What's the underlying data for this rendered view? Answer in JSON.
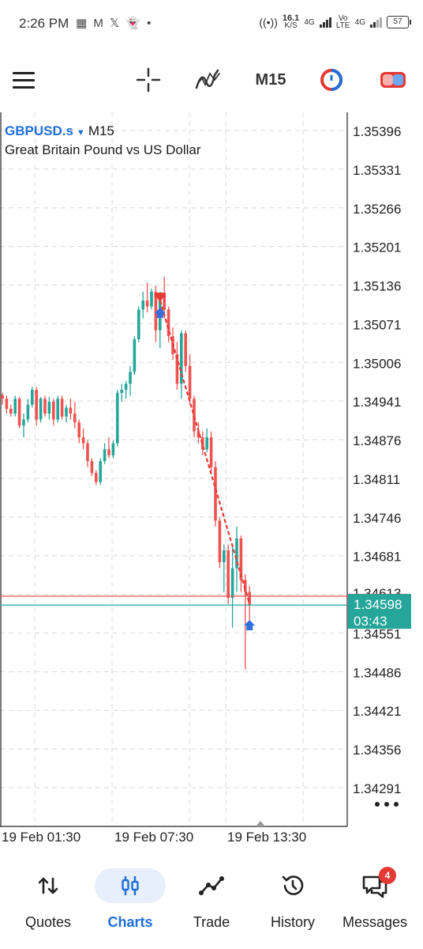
{
  "status_bar": {
    "time": "2:26 PM",
    "left_icons": [
      "network-speed-icon",
      "gmail-icon",
      "x-icon",
      "snapchat-icon",
      "dot-icon"
    ],
    "net_speed_value": "16.1",
    "net_speed_unit": "K/S",
    "network_1": "4G",
    "volte": "Vo LTE",
    "network_2": "4G",
    "battery": "57"
  },
  "toolbar": {
    "timeframe": "M15",
    "icons": [
      "menu-icon",
      "crosshair-icon",
      "indicator-icon",
      "chart-type-icon",
      "trade-toggle-icon"
    ]
  },
  "chart": {
    "symbol": "GBPUSD.s",
    "timeframe": "M15",
    "description": "Great Britain Pound vs US Dollar",
    "current_bid": "1.34598",
    "countdown": "03:43",
    "ask_label_partial": "1.34613",
    "colors": {
      "bull": "#26a69a",
      "bear": "#ef5350",
      "bid_line": "#26a69a",
      "ask_line": "#ef5350",
      "trade_line": "#e53935"
    }
  },
  "chart_data": {
    "type": "candlestick",
    "y_ticks": [
      "1.35396",
      "1.35331",
      "1.35266",
      "1.35201",
      "1.35136",
      "1.35071",
      "1.35006",
      "1.34941",
      "1.34876",
      "1.34811",
      "1.34746",
      "1.34681",
      "1.34551",
      "1.34486",
      "1.34421",
      "1.34356",
      "1.34291"
    ],
    "ylim": [
      1.34248,
      1.35426
    ],
    "x_ticks": [
      "19 Feb 01:30",
      "19 Feb 07:30",
      "19 Feb 13:30"
    ],
    "candles": [
      [
        1.34951,
        1.34955,
        1.34935,
        1.34945
      ],
      [
        1.34945,
        1.3495,
        1.3492,
        1.34928
      ],
      [
        1.34928,
        1.34935,
        1.34915,
        1.3492
      ],
      [
        1.3492,
        1.3495,
        1.34915,
        1.34945
      ],
      [
        1.34945,
        1.34948,
        1.34895,
        1.349
      ],
      [
        1.349,
        1.3492,
        1.3488,
        1.3491
      ],
      [
        1.3491,
        1.34945,
        1.34905,
        1.34935
      ],
      [
        1.34935,
        1.34965,
        1.3493,
        1.3496
      ],
      [
        1.3496,
        1.34965,
        1.349,
        1.3491
      ],
      [
        1.3491,
        1.34948,
        1.34905,
        1.34945
      ],
      [
        1.34945,
        1.3495,
        1.34915,
        1.3492
      ],
      [
        1.3492,
        1.34948,
        1.3491,
        1.3494
      ],
      [
        1.3494,
        1.34945,
        1.349,
        1.3491
      ],
      [
        1.3491,
        1.3495,
        1.34905,
        1.34945
      ],
      [
        1.34945,
        1.3495,
        1.3491,
        1.34915
      ],
      [
        1.34915,
        1.34935,
        1.34905,
        1.3493
      ],
      [
        1.3493,
        1.34945,
        1.3491,
        1.3492
      ],
      [
        1.3492,
        1.3494,
        1.34895,
        1.34905
      ],
      [
        1.34905,
        1.3491,
        1.3487,
        1.3488
      ],
      [
        1.3488,
        1.34895,
        1.3486,
        1.3487
      ],
      [
        1.3487,
        1.34875,
        1.3483,
        1.3484
      ],
      [
        1.3484,
        1.34845,
        1.34815,
        1.3482
      ],
      [
        1.3482,
        1.34825,
        1.348,
        1.34805
      ],
      [
        1.34805,
        1.34845,
        1.348,
        1.3484
      ],
      [
        1.3484,
        1.3487,
        1.34835,
        1.3486
      ],
      [
        1.3486,
        1.3488,
        1.34845,
        1.3485
      ],
      [
        1.3485,
        1.34875,
        1.34845,
        1.3487
      ],
      [
        1.3487,
        1.3496,
        1.34865,
        1.34955
      ],
      [
        1.34955,
        1.3497,
        1.3494,
        1.3496
      ],
      [
        1.3496,
        1.34975,
        1.34945,
        1.3497
      ],
      [
        1.3497,
        1.35,
        1.3495,
        1.3499
      ],
      [
        1.3499,
        1.3505,
        1.34985,
        1.35045
      ],
      [
        1.35045,
        1.351,
        1.3504,
        1.35095
      ],
      [
        1.35095,
        1.35125,
        1.3508,
        1.3511
      ],
      [
        1.3511,
        1.3514,
        1.3509,
        1.351
      ],
      [
        1.351,
        1.3513,
        1.35095,
        1.35125
      ],
      [
        1.35125,
        1.35135,
        1.3504,
        1.3506
      ],
      [
        1.3506,
        1.35125,
        1.3503,
        1.3512
      ],
      [
        1.3512,
        1.3515,
        1.3508,
        1.35095
      ],
      [
        1.35095,
        1.351,
        1.3504,
        1.3505
      ],
      [
        1.3505,
        1.35065,
        1.3501,
        1.3502
      ],
      [
        1.3502,
        1.3504,
        1.3496,
        1.3497
      ],
      [
        1.3497,
        1.3506,
        1.34945,
        1.35055
      ],
      [
        1.35055,
        1.3506,
        1.3499,
        1.35
      ],
      [
        1.35,
        1.3502,
        1.34935,
        1.34945
      ],
      [
        1.34945,
        1.3495,
        1.3488,
        1.3489
      ],
      [
        1.3489,
        1.34905,
        1.3487,
        1.3488
      ],
      [
        1.3488,
        1.3489,
        1.3485,
        1.3486
      ],
      [
        1.3486,
        1.34895,
        1.34855,
        1.3488
      ],
      [
        1.3488,
        1.3489,
        1.3482,
        1.3483
      ],
      [
        1.3483,
        1.3484,
        1.3473,
        1.3474
      ],
      [
        1.3474,
        1.34745,
        1.3466,
        1.3467
      ],
      [
        1.3467,
        1.347,
        1.3462,
        1.3469
      ],
      [
        1.3469,
        1.347,
        1.346,
        1.3461
      ],
      [
        1.3461,
        1.347,
        1.3456,
        1.3466
      ],
      [
        1.3466,
        1.3473,
        1.3462,
        1.3471
      ],
      [
        1.3471,
        1.34715,
        1.3462,
        1.3464
      ],
      [
        1.3464,
        1.3465,
        1.3449,
        1.3462
      ],
      [
        1.3462,
        1.3463,
        1.3457,
        1.34598
      ]
    ],
    "trade_markers": [
      {
        "type": "sell",
        "candle": 37,
        "price": 1.3511
      },
      {
        "type": "buy",
        "candle": 37,
        "price": 1.3509
      },
      {
        "type": "buy",
        "candle": 58,
        "price": 1.34565
      }
    ],
    "trade_line": [
      [
        37,
        1.3511
      ],
      [
        58,
        1.346
      ]
    ],
    "bid": 1.34598,
    "ask": 1.34613,
    "grid": true
  },
  "bottom_nav": {
    "items": [
      {
        "label": "Quotes",
        "icon": "quotes-arrows-icon",
        "active": false
      },
      {
        "label": "Charts",
        "icon": "charts-candles-icon",
        "active": true
      },
      {
        "label": "Trade",
        "icon": "trade-line-icon",
        "active": false
      },
      {
        "label": "History",
        "icon": "history-clock-icon",
        "active": false
      },
      {
        "label": "Messages",
        "icon": "messages-icon",
        "active": false,
        "badge": "4"
      }
    ]
  }
}
